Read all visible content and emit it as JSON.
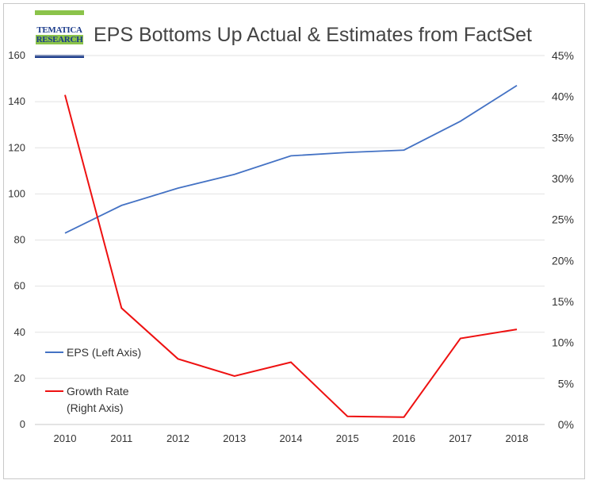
{
  "header": {
    "logo_line1": "TEMATICA",
    "logo_line2": "RESEARCH",
    "title": "EPS Bottoms Up Actual & Estimates from FactSet"
  },
  "chart_data": {
    "type": "line",
    "title": "EPS Bottoms Up Actual & Estimates from FactSet",
    "categories": [
      "2010",
      "2011",
      "2012",
      "2013",
      "2014",
      "2015",
      "2016",
      "2017",
      "2018"
    ],
    "series": [
      {
        "name": "EPS (Left Axis)",
        "axis": "left",
        "color": "#4472c4",
        "values": [
          83,
          95,
          102.5,
          108.5,
          116.5,
          118,
          119,
          131.5,
          147
        ]
      },
      {
        "name_lines": [
          "Growth Rate",
          "(Right Axis)"
        ],
        "axis": "right",
        "color": "#ee1111",
        "values": [
          40.2,
          14.2,
          8.0,
          5.9,
          7.6,
          1.0,
          0.9,
          10.5,
          11.6
        ]
      }
    ],
    "left_axis": {
      "ylim": [
        0,
        160
      ],
      "ticks": [
        "0",
        "20",
        "40",
        "60",
        "80",
        "100",
        "120",
        "140",
        "160"
      ]
    },
    "right_axis": {
      "ylim": [
        0,
        45
      ],
      "ticks": [
        "0%",
        "5%",
        "10%",
        "15%",
        "20%",
        "25%",
        "30%",
        "35%",
        "40%",
        "45%"
      ]
    },
    "grid": true,
    "legend_position": "left"
  }
}
